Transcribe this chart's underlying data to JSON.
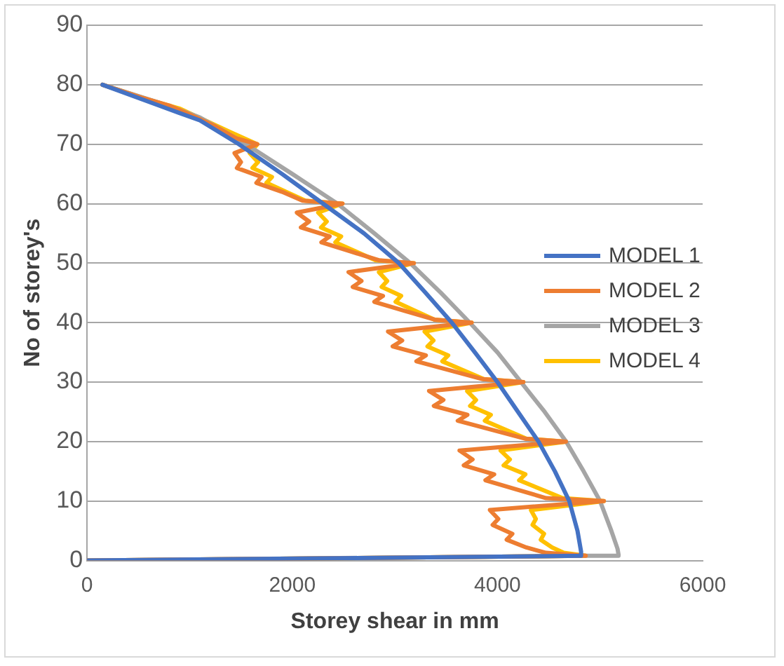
{
  "chart_data": {
    "type": "line",
    "xlabel": "Storey shear in mm",
    "ylabel": "No of storey's",
    "xlim": [
      0,
      6000
    ],
    "xticks": [
      0,
      2000,
      4000,
      6000
    ],
    "ylim": [
      0,
      90
    ],
    "yticks": [
      0,
      10,
      20,
      30,
      40,
      50,
      60,
      70,
      80,
      90
    ],
    "grid": "y",
    "legend": "right",
    "marker": "none",
    "line_style": "solid",
    "series": [
      {
        "name": "MODEL 1",
        "color": "#4472c4",
        "x": [
          150,
          700,
          1100,
          1480,
          1900,
          2300,
          2700,
          3040,
          3300,
          3555,
          3780,
          4000,
          4200,
          4400,
          4560,
          4700,
          4780,
          4815,
          4815,
          0
        ],
        "values": [
          80,
          76.5,
          74,
          70,
          65,
          60,
          55,
          50,
          45,
          40,
          35,
          30,
          25,
          20,
          15,
          10,
          5,
          1.5,
          0.8,
          0
        ]
      },
      {
        "name": "MODEL 2",
        "color": "#ed7d31",
        "x": [
          150,
          500,
          800,
          1000,
          1250,
          1450,
          1659,
          1437,
          1500,
          1460,
          1700,
          1650,
          1900,
          2100,
          2489,
          2044,
          2164,
          2084,
          2364,
          2284,
          2563,
          2843,
          3185,
          2548,
          2674,
          2590,
          2884,
          2800,
          3094,
          3388,
          3748,
          2933,
          3071,
          2979,
          3302,
          3210,
          3533,
          3856,
          4252,
          3333,
          3473,
          3380,
          3707,
          3613,
          3940,
          4267,
          4667,
          3630,
          3757,
          3672,
          3968,
          3883,
          4179,
          4474,
          5037,
          3926,
          4008,
          3953,
          4145,
          4090,
          4282,
          4474,
          4860,
          0
        ],
        "values": [
          80,
          78,
          76.5,
          75,
          73,
          71,
          70,
          68.5,
          67,
          66,
          64.5,
          63.5,
          62,
          60.5,
          60,
          58.5,
          57,
          56,
          54.5,
          53.5,
          52,
          50.5,
          50,
          48.5,
          47,
          46,
          44.5,
          43.5,
          42,
          40.5,
          40,
          38.5,
          37,
          36,
          34.5,
          33.5,
          32,
          30.5,
          30,
          28.5,
          27,
          26,
          24.5,
          23.5,
          22,
          20.5,
          20,
          18.5,
          17,
          16,
          14.5,
          13.5,
          12,
          10.5,
          10,
          8.5,
          7,
          6,
          4.5,
          3.5,
          2.2,
          1.3,
          0.8,
          0
        ]
      },
      {
        "name": "MODEL 3",
        "color": "#a5a5a5",
        "x": [
          150,
          700,
          1100,
          1550,
          2000,
          2440,
          2800,
          3150,
          3450,
          3730,
          4000,
          4230,
          4460,
          4670,
          4840,
          5000,
          5110,
          5170,
          5180,
          5180,
          4800,
          0
        ],
        "values": [
          80,
          77,
          74.5,
          70,
          65,
          60,
          55,
          50,
          45,
          40,
          35,
          30,
          25,
          20,
          15,
          10,
          5,
          2,
          1,
          0.8,
          0.8,
          0
        ]
      },
      {
        "name": "MODEL 4",
        "color": "#ffc000",
        "x": [
          150,
          600,
          900,
          1150,
          1400,
          1659,
          1585,
          1666,
          1612,
          1802,
          1748,
          1937,
          2127,
          2489,
          2252,
          2336,
          2280,
          2476,
          2420,
          2616,
          2812,
          3185,
          2844,
          2925,
          2871,
          3061,
          3007,
          3196,
          3386,
          3748,
          3289,
          3376,
          3318,
          3520,
          3462,
          3664,
          3867,
          4252,
          3704,
          3791,
          3733,
          3935,
          3877,
          4079,
          4282,
          4667,
          4030,
          4121,
          4060,
          4272,
          4211,
          4423,
          4634,
          5037,
          4326,
          4374,
          4342,
          4454,
          4422,
          4534,
          4646,
          4860,
          0
        ],
        "values": [
          80,
          77.5,
          76,
          74,
          72,
          70,
          68.5,
          67,
          66,
          64.5,
          63.5,
          62,
          60.5,
          60,
          58.5,
          57,
          56,
          54.5,
          53.5,
          52,
          50.5,
          50,
          48.5,
          47,
          46,
          44.5,
          43.5,
          42,
          40.5,
          40,
          38.5,
          37,
          36,
          34.5,
          33.5,
          32,
          30.5,
          30,
          28.5,
          27,
          26,
          24.5,
          23.5,
          22,
          20.5,
          20,
          18.5,
          17,
          16,
          14.5,
          13.5,
          12,
          10.5,
          10,
          8.5,
          7,
          6,
          4.5,
          3.5,
          2.2,
          1.3,
          0.8,
          0
        ]
      }
    ]
  }
}
